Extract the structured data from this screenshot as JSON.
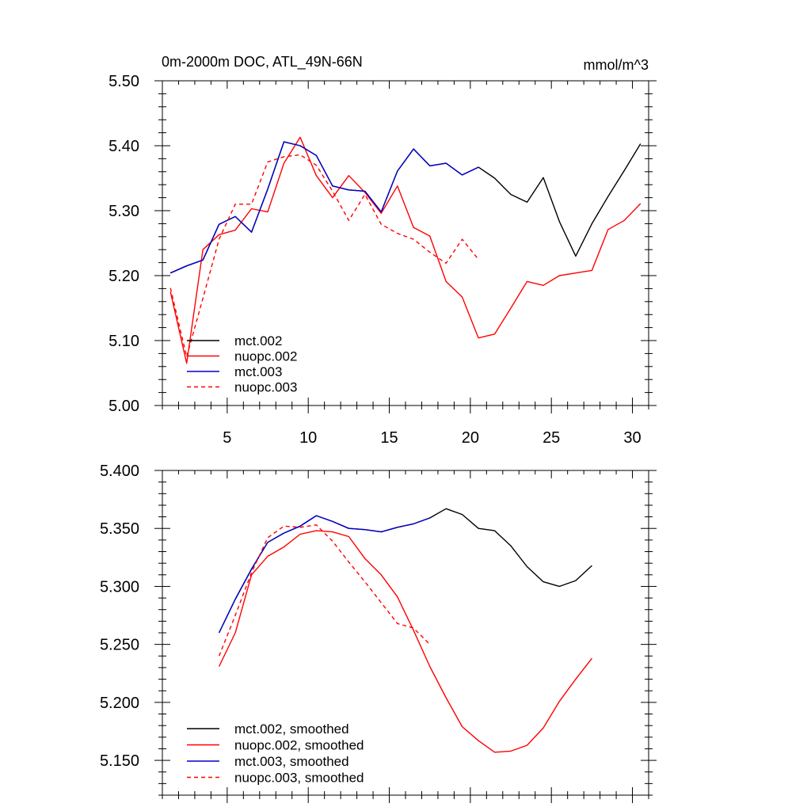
{
  "chart_data": [
    {
      "type": "line",
      "title": "0m-2000m DOC, ATL_49N-66N",
      "units": "mmol/m^3",
      "xlim": [
        1,
        31
      ],
      "ylim": [
        5.0,
        5.5
      ],
      "xticks": [
        5,
        10,
        15,
        20,
        25,
        30
      ],
      "xtick_labels": [
        "5",
        "10",
        "15",
        "20",
        "25",
        "30"
      ],
      "yticks": [
        5.0,
        5.1,
        5.2,
        5.3,
        5.4,
        5.5
      ],
      "ytick_labels": [
        "5.00",
        "5.10",
        "5.20",
        "5.30",
        "5.40",
        "5.50"
      ],
      "legend_position": "bottom-left",
      "series": [
        {
          "name": "mct.002",
          "color": "#000000",
          "dash": "solid",
          "x": [
            1.5,
            2.5,
            3.5,
            4.5,
            5.5,
            6.5,
            7.5,
            8.5,
            9.5,
            10.5,
            11.5,
            12.5,
            13.5,
            14.5,
            15.5,
            16.5,
            17.5,
            18.5,
            19.5,
            20.5,
            21.5,
            22.5,
            23.5,
            24.5,
            25.5,
            26.5,
            27.5,
            28.5,
            29.5,
            30.5
          ],
          "y": [
            5.204,
            5.215,
            5.224,
            5.279,
            5.291,
            5.267,
            5.333,
            5.406,
            5.4,
            5.385,
            5.338,
            5.332,
            5.33,
            5.298,
            5.361,
            5.395,
            5.369,
            5.373,
            5.355,
            5.367,
            5.35,
            5.325,
            5.313,
            5.351,
            5.283,
            5.23,
            5.28,
            5.322,
            5.362,
            5.403
          ]
        },
        {
          "name": "nuopc.002",
          "color": "#ff0000",
          "dash": "solid",
          "x": [
            1.5,
            2.5,
            3.5,
            4.5,
            5.5,
            6.5,
            7.5,
            8.5,
            9.5,
            10.5,
            11.5,
            12.5,
            13.5,
            14.5,
            15.5,
            16.5,
            17.5,
            18.5,
            19.5,
            20.5,
            21.5,
            22.5,
            23.5,
            24.5,
            25.5,
            26.5,
            27.5,
            28.5,
            29.5,
            30.5
          ],
          "y": [
            5.175,
            5.065,
            5.24,
            5.263,
            5.27,
            5.303,
            5.298,
            5.373,
            5.413,
            5.354,
            5.32,
            5.354,
            5.328,
            5.296,
            5.338,
            5.274,
            5.261,
            5.191,
            5.167,
            5.104,
            5.11,
            5.15,
            5.191,
            5.185,
            5.2,
            5.204,
            5.208,
            5.271,
            5.285,
            5.311
          ]
        },
        {
          "name": "mct.003",
          "color": "#0000cc",
          "dash": "solid",
          "x": [
            1.5,
            2.5,
            3.5,
            4.5,
            5.5,
            6.5,
            7.5,
            8.5,
            9.5,
            10.5,
            11.5,
            12.5,
            13.5,
            14.5,
            15.5,
            16.5,
            17.5,
            18.5,
            19.5,
            20.5
          ],
          "y": [
            5.204,
            5.215,
            5.224,
            5.279,
            5.291,
            5.267,
            5.333,
            5.406,
            5.4,
            5.385,
            5.338,
            5.332,
            5.33,
            5.298,
            5.361,
            5.395,
            5.369,
            5.373,
            5.355,
            5.367
          ]
        },
        {
          "name": "nuopc.003",
          "color": "#ff0000",
          "dash": "dashed",
          "x": [
            1.5,
            2.5,
            3.5,
            4.5,
            5.5,
            6.5,
            7.5,
            8.5,
            9.5,
            10.5,
            11.5,
            12.5,
            13.5,
            14.5,
            15.5,
            16.5,
            17.5,
            18.5,
            19.5,
            20.5
          ],
          "y": [
            5.181,
            5.075,
            5.165,
            5.256,
            5.31,
            5.31,
            5.375,
            5.383,
            5.386,
            5.37,
            5.33,
            5.285,
            5.325,
            5.279,
            5.265,
            5.256,
            5.236,
            5.219,
            5.256,
            5.225
          ]
        }
      ]
    },
    {
      "type": "line",
      "title": "",
      "xlim": [
        1,
        31
      ],
      "ylim": [
        5.12,
        5.4
      ],
      "xticks": [
        5,
        10,
        15,
        20,
        25,
        30
      ],
      "xtick_labels": [],
      "yticks": [
        5.15,
        5.2,
        5.25,
        5.3,
        5.35,
        5.4
      ],
      "ytick_labels": [
        "5.150",
        "5.200",
        "5.250",
        "5.300",
        "5.350",
        "5.400"
      ],
      "legend_position": "bottom-left",
      "series": [
        {
          "name": "mct.002, smoothed",
          "color": "#000000",
          "dash": "solid",
          "x": [
            4.5,
            5.5,
            6.5,
            7.5,
            8.5,
            9.5,
            10.5,
            11.5,
            12.5,
            13.5,
            14.5,
            15.5,
            16.5,
            17.5,
            18.5,
            19.5,
            20.5,
            21.5,
            22.5,
            23.5,
            24.5,
            25.5,
            26.5,
            27.5
          ],
          "y": [
            5.26,
            5.289,
            5.315,
            5.338,
            5.346,
            5.352,
            5.361,
            5.356,
            5.35,
            5.349,
            5.347,
            5.351,
            5.354,
            5.359,
            5.367,
            5.362,
            5.35,
            5.348,
            5.335,
            5.317,
            5.304,
            5.3,
            5.305,
            5.318
          ]
        },
        {
          "name": "nuopc.002, smoothed",
          "color": "#ff0000",
          "dash": "solid",
          "x": [
            4.5,
            5.5,
            6.5,
            7.5,
            8.5,
            9.5,
            10.5,
            11.5,
            12.5,
            13.5,
            14.5,
            15.5,
            16.5,
            17.5,
            18.5,
            19.5,
            20.5,
            21.5,
            22.5,
            23.5,
            24.5,
            25.5,
            26.5,
            27.5
          ],
          "y": [
            5.231,
            5.26,
            5.31,
            5.326,
            5.334,
            5.345,
            5.348,
            5.347,
            5.343,
            5.324,
            5.31,
            5.291,
            5.262,
            5.231,
            5.204,
            5.179,
            5.167,
            5.157,
            5.158,
            5.163,
            5.178,
            5.201,
            5.22,
            5.238
          ]
        },
        {
          "name": "mct.003, smoothed",
          "color": "#0000cc",
          "dash": "solid",
          "x": [
            4.5,
            5.5,
            6.5,
            7.5,
            8.5,
            9.5,
            10.5,
            11.5,
            12.5,
            13.5,
            14.5,
            15.5,
            16.5,
            17.5
          ],
          "y": [
            5.26,
            5.289,
            5.315,
            5.338,
            5.346,
            5.352,
            5.361,
            5.356,
            5.35,
            5.349,
            5.347,
            5.351,
            5.354,
            5.359
          ]
        },
        {
          "name": "nuopc.003, smoothed",
          "color": "#ff0000",
          "dash": "dashed",
          "x": [
            4.5,
            5.5,
            6.5,
            7.5,
            8.5,
            9.5,
            10.5,
            11.5,
            12.5,
            13.5,
            14.5,
            15.5,
            16.5,
            17.5
          ],
          "y": [
            5.24,
            5.275,
            5.312,
            5.342,
            5.352,
            5.351,
            5.353,
            5.339,
            5.321,
            5.304,
            5.286,
            5.268,
            5.264,
            5.25
          ]
        }
      ]
    }
  ]
}
